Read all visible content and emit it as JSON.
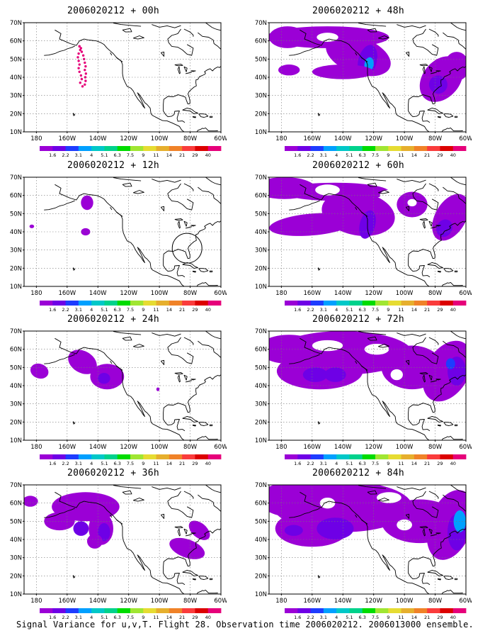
{
  "caption": "Signal Variance for u,v,T. Flight 28. Observation time 2006020212. 2006013000 ensemble.",
  "lat_labels": [
    "70N",
    "60N",
    "50N",
    "40N",
    "30N",
    "20N",
    "10N"
  ],
  "lon_labels": [
    "180",
    "160W",
    "140W",
    "120W",
    "100W",
    "80W",
    "60W"
  ],
  "colorbar": {
    "colors": [
      "#9b00d6",
      "#6e00e6",
      "#1e3cff",
      "#00a0ff",
      "#00c8c8",
      "#00d28c",
      "#00dc00",
      "#a0e632",
      "#e6dc32",
      "#e6af2d",
      "#f08228",
      "#fa3c3c",
      "#dc0000",
      "#e6007a"
    ],
    "labels": [
      "1.6",
      "2.2",
      "3.1",
      "4",
      "5.1",
      "6.3",
      "7.5",
      "9",
      "11",
      "14",
      "21",
      "29",
      "40"
    ]
  },
  "panels": [
    {
      "title": "2006020212 + 00h"
    },
    {
      "title": "2006020212 + 48h"
    },
    {
      "title": "2006020212 + 12h"
    },
    {
      "title": "2006020212 + 60h"
    },
    {
      "title": "2006020212 + 24h"
    },
    {
      "title": "2006020212 + 72h"
    },
    {
      "title": "2006020212 + 36h"
    },
    {
      "title": "2006020212 + 84h"
    }
  ]
}
